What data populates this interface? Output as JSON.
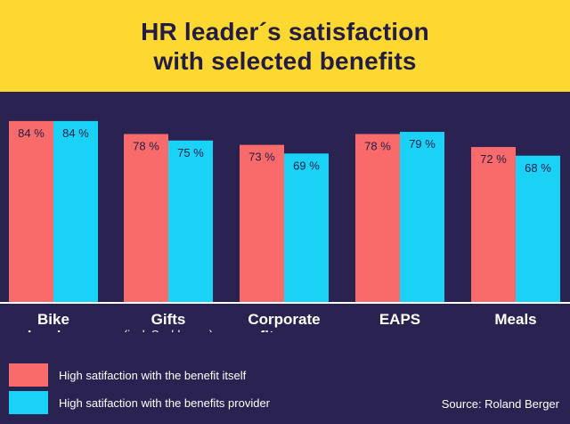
{
  "header": {
    "title_line1": "HR leader´s satisfaction",
    "title_line2": "with selected benefits"
  },
  "chart_data": {
    "type": "bar",
    "title": "HR leader´s satisfaction with selected benefits",
    "categories": [
      {
        "name": "Bike",
        "sub": "leasing"
      },
      {
        "name": "Gifts",
        "sub": "(incl. Sachbezug)"
      },
      {
        "name": "Corporate",
        "sub": "fitness"
      },
      {
        "name": "EAPS",
        "sub": ""
      },
      {
        "name": "Meals",
        "sub": ""
      }
    ],
    "series": [
      {
        "name": "High satifaction with the benefit itself",
        "color": "#f96b6b",
        "values": [
          84,
          78,
          73,
          78,
          72
        ],
        "labels": [
          "84 %",
          "78 %",
          "73 %",
          "78 %",
          "72 %"
        ]
      },
      {
        "name": "High satifaction with the benefits provider",
        "color": "#1ad2f5",
        "values": [
          84,
          75,
          69,
          79,
          68
        ],
        "labels": [
          "84 %",
          "75 %",
          "69 %",
          "79 %",
          "68 %"
        ]
      }
    ],
    "ylim": [
      0,
      100
    ],
    "xlabel": "",
    "ylabel": "",
    "legend_position": "bottom-left"
  },
  "source": "Source: Roland Berger",
  "colors": {
    "background": "#2a2250",
    "header_bg": "#fcd830",
    "text_dark": "#231c44",
    "axis": "#ffffff"
  }
}
